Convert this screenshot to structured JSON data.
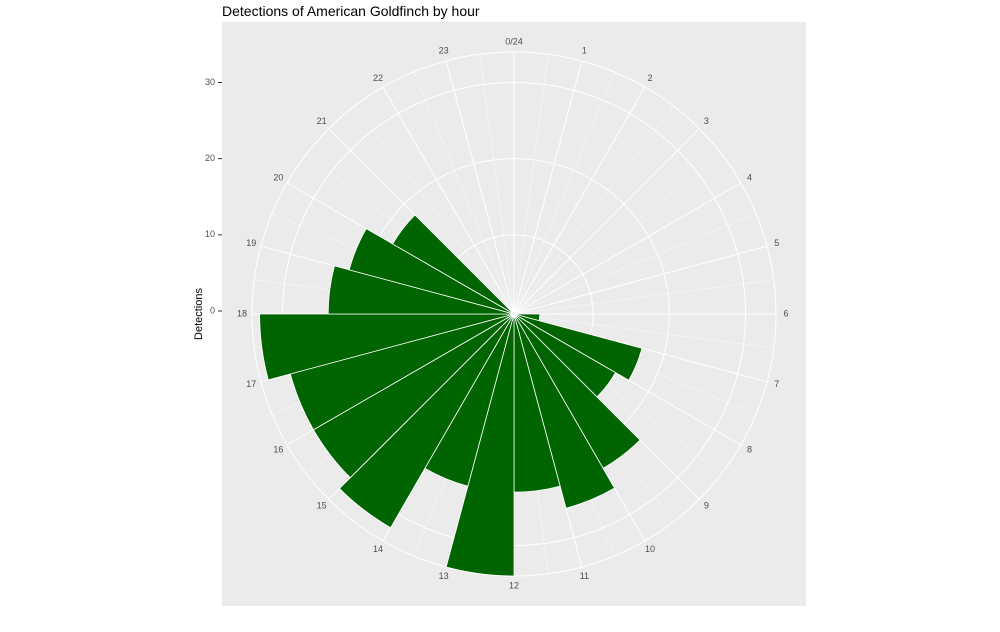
{
  "chart_data": {
    "type": "bar",
    "coord": "polar",
    "title": "Detections of American Goldfinch by hour",
    "xlabel": "",
    "ylabel": "Detections",
    "categories": [
      "0/24",
      "1",
      "2",
      "3",
      "4",
      "5",
      "6",
      "7",
      "8",
      "9",
      "10",
      "11",
      "12",
      "13",
      "14",
      "15",
      "16",
      "17",
      "18",
      "19",
      "20",
      "21",
      "22",
      "23"
    ],
    "values": [
      0,
      0,
      0,
      0,
      0,
      0,
      3,
      17,
      15,
      23,
      26,
      23,
      34,
      23,
      32,
      30,
      30,
      33,
      24,
      22,
      18,
      0,
      0,
      0
    ],
    "y_ticks": [
      0,
      10,
      20,
      30
    ],
    "y_tick_labels": [
      "0",
      "10",
      "20",
      "30"
    ],
    "grid": true,
    "colors": {
      "bar": "#006400",
      "panel": "#ebebeb",
      "grid": "#ffffff"
    }
  }
}
